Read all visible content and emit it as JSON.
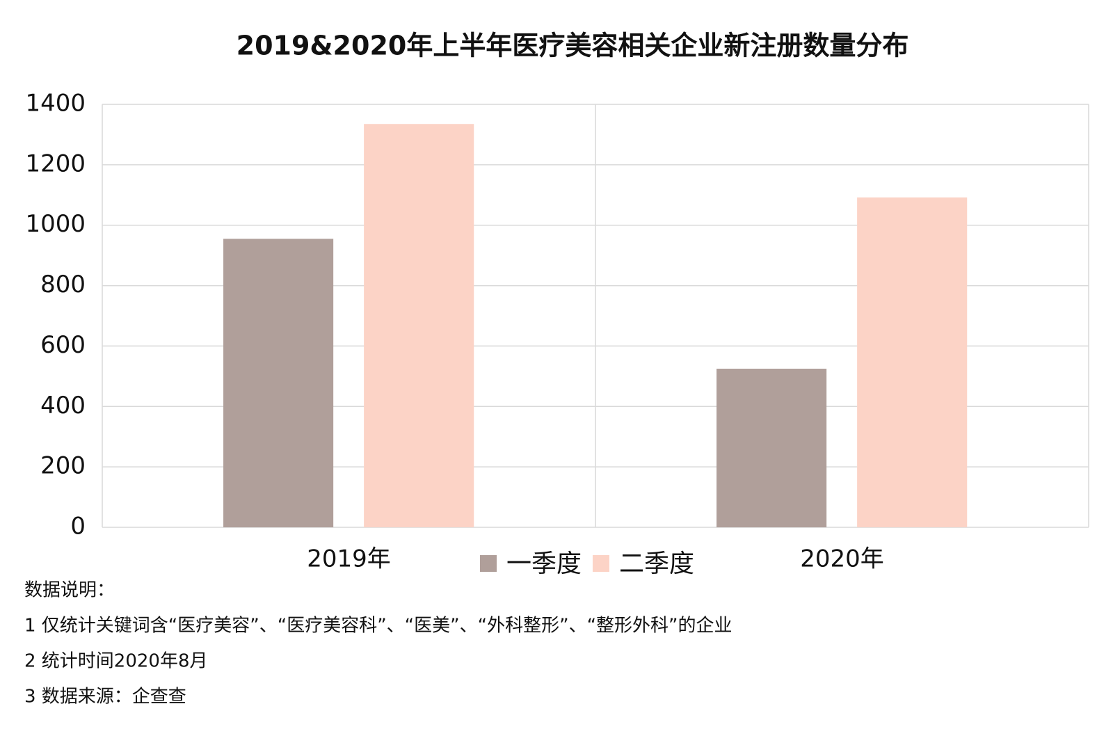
{
  "chart_data": {
    "type": "bar",
    "title": "2019&2020年上半年医疗美容相关企业新注册数量分布",
    "categories": [
      "2019年",
      "2020年"
    ],
    "series": [
      {
        "name": "一季度",
        "color": "#b09f9a",
        "values": [
          955,
          525
        ]
      },
      {
        "name": "二季度",
        "color": "#fcd3c6",
        "values": [
          1335,
          1092
        ]
      }
    ],
    "ylim": [
      0,
      1400
    ],
    "yticks": [
      0,
      200,
      400,
      600,
      800,
      1000,
      1200,
      1400
    ],
    "grid": true,
    "legend": "bottom"
  },
  "notes": {
    "heading": "数据说明：",
    "lines": [
      "1 仅统计关键词含“医疗美容”、“医疗美容科”、“医美”、“外科整形”、“整形外科”的企业",
      "2 统计时间2020年8月",
      "3 数据来源：企查查"
    ]
  }
}
